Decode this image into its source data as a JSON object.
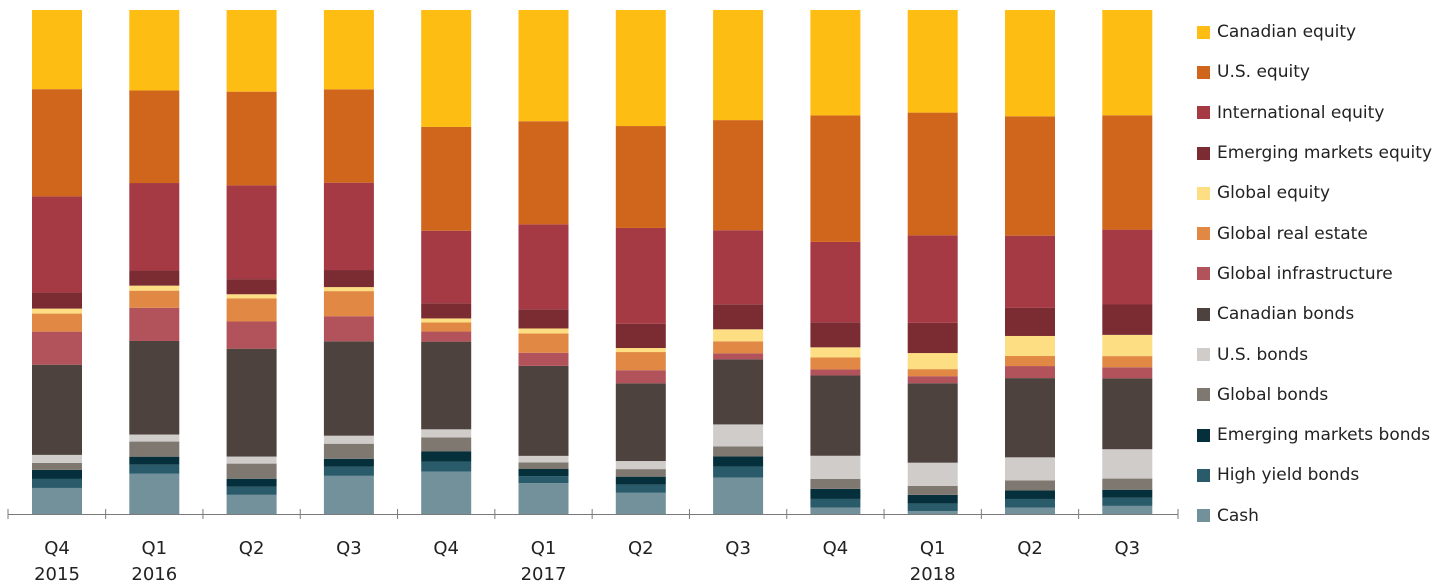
{
  "chart_data": {
    "type": "bar",
    "stacked": true,
    "categories": [
      "Q4",
      "Q1",
      "Q2",
      "Q3",
      "Q4",
      "Q1",
      "Q2",
      "Q3",
      "Q4",
      "Q1",
      "Q2",
      "Q3"
    ],
    "years": [
      "2015",
      "2016",
      "",
      "",
      "",
      "2017",
      "",
      "",
      "",
      "2018",
      "",
      ""
    ],
    "ylim": [
      0,
      100
    ],
    "legend_position": "right",
    "grid": false,
    "series": [
      {
        "name": "Cash",
        "color": "#73919B",
        "values": [
          5.2,
          8.0,
          3.8,
          7.6,
          8.4,
          6.1,
          4.2,
          7.3,
          1.3,
          0.6,
          1.3,
          1.6
        ]
      },
      {
        "name": "High yield bonds",
        "color": "#2A5B6A",
        "values": [
          1.8,
          1.8,
          1.6,
          1.8,
          2.0,
          1.4,
          1.6,
          2.2,
          1.7,
          1.5,
          1.7,
          1.6
        ]
      },
      {
        "name": "Emerging markets bonds",
        "color": "#052F3A",
        "values": [
          1.8,
          1.6,
          1.6,
          1.6,
          2.0,
          1.4,
          1.6,
          2.0,
          2.0,
          1.7,
          1.7,
          1.6
        ]
      },
      {
        "name": "Global bonds",
        "color": "#7F7870",
        "values": [
          1.4,
          3.0,
          3.0,
          3.0,
          2.8,
          1.3,
          1.5,
          2.0,
          2.0,
          1.8,
          2.0,
          2.2
        ]
      },
      {
        "name": "U.S. bonds",
        "color": "#CFCCC9",
        "values": [
          1.6,
          1.4,
          1.4,
          1.6,
          1.6,
          1.3,
          1.6,
          4.4,
          4.6,
          4.6,
          4.6,
          5.8
        ]
      },
      {
        "name": "Canadian bonds",
        "color": "#4D423D",
        "values": [
          18.0,
          18.6,
          21.4,
          18.8,
          17.4,
          17.8,
          15.4,
          13.0,
          16.0,
          15.8,
          15.8,
          14.0
        ]
      },
      {
        "name": "Global infrastructure",
        "color": "#B2535B",
        "values": [
          6.6,
          6.6,
          5.4,
          5.0,
          2.0,
          2.6,
          2.6,
          1.2,
          1.2,
          1.4,
          2.4,
          2.2
        ]
      },
      {
        "name": "Global real estate",
        "color": "#E08844",
        "values": [
          3.6,
          3.4,
          4.6,
          5.0,
          1.8,
          3.8,
          3.6,
          2.4,
          2.4,
          1.4,
          2.0,
          2.2
        ]
      },
      {
        "name": "Global equity",
        "color": "#FEDE82",
        "values": [
          1.0,
          1.0,
          0.8,
          0.8,
          0.8,
          1.0,
          0.8,
          2.4,
          2.0,
          3.2,
          4.0,
          4.2
        ]
      },
      {
        "name": "Emerging markets equity",
        "color": "#7B2C32",
        "values": [
          3.2,
          3.0,
          3.0,
          3.4,
          3.0,
          3.8,
          4.8,
          5.0,
          5.0,
          6.0,
          5.6,
          6.0
        ]
      },
      {
        "name": "International equity",
        "color": "#A53A44",
        "values": [
          19.2,
          17.4,
          18.6,
          17.4,
          14.4,
          16.8,
          19.0,
          14.8,
          16.0,
          17.4,
          14.4,
          14.8
        ]
      },
      {
        "name": "U.S. equity",
        "color": "#D0661C",
        "values": [
          21.4,
          18.4,
          18.6,
          18.6,
          20.6,
          20.4,
          20.2,
          22.0,
          25.2,
          24.4,
          23.8,
          22.6
        ]
      },
      {
        "name": "Canadian equity",
        "color": "#FDBD12",
        "values": [
          15.8,
          16.0,
          16.2,
          15.8,
          23.2,
          22.0,
          23.0,
          22.0,
          21.0,
          20.4,
          21.2,
          20.8
        ]
      }
    ]
  },
  "legend_order": [
    "Canadian equity",
    "U.S. equity",
    "International equity",
    "Emerging markets equity",
    "Global equity",
    "Global real estate",
    "Global infrastructure",
    "Canadian bonds",
    "U.S. bonds",
    "Global bonds",
    "Emerging markets bonds",
    "High yield bonds",
    "Cash"
  ]
}
